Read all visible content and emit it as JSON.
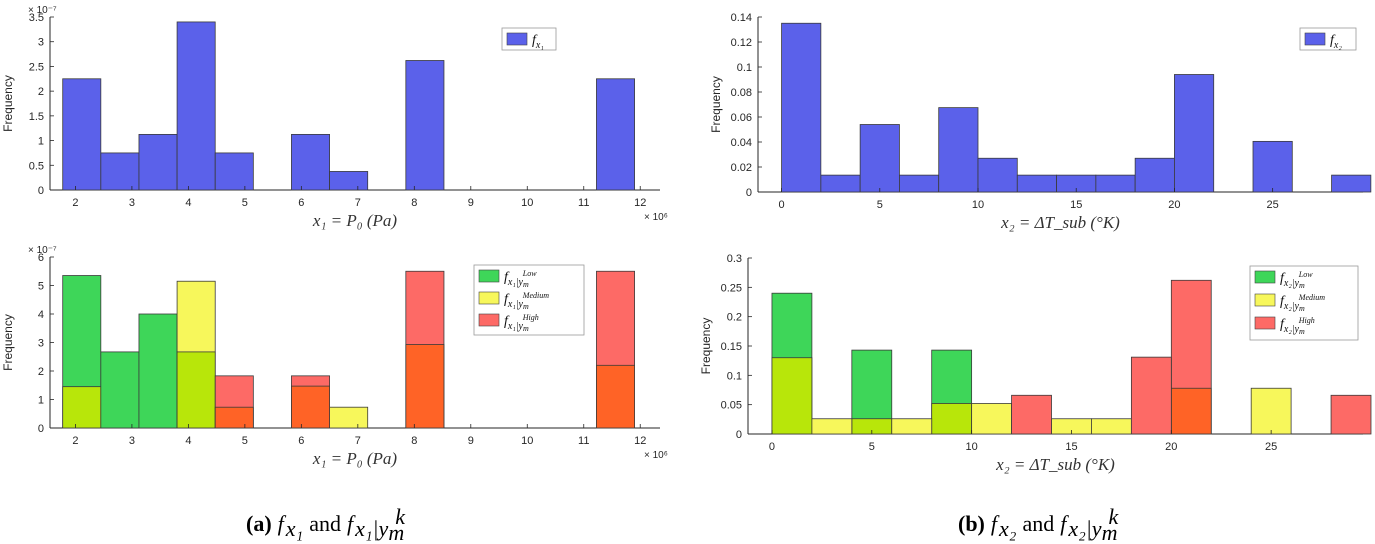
{
  "colors": {
    "blue": "#5b61ea",
    "green": "#3ed659",
    "yellow": "#f7f75b",
    "red": "#fd6a66",
    "green_yellow": "#b8e60a",
    "yellow_red": "#ff6326"
  },
  "captions": {
    "a": {
      "label": "(a)",
      "f1": "f",
      "f1_sub": "x₁",
      "and": "and",
      "f2": "f",
      "f2_sub": "x₁|y",
      "f2_subsub": "m",
      "f2_sup": "k"
    },
    "b": {
      "label": "(b)",
      "f1": "f",
      "f1_sub": "x₂",
      "and": "and",
      "f2": "f",
      "f2_sub": "x₂|y",
      "f2_subsub": "m",
      "f2_sup": "k"
    }
  },
  "chart_data": [
    {
      "id": "top-left",
      "type": "bar",
      "ylabel": "Frequency",
      "xlabel": "x₁ = P₀ (Pa)",
      "y_exponent": "× 10⁻⁷",
      "x_exponent": "× 10⁶",
      "xlim": [
        1.55,
        12.35
      ],
      "ylim": [
        0,
        3.5
      ],
      "xticks": [
        2,
        3,
        4,
        5,
        6,
        7,
        8,
        9,
        10,
        11,
        12
      ],
      "xtick_labels": [
        "2",
        "3",
        "4",
        "5",
        "6",
        "7",
        "8",
        "9",
        "10",
        "11",
        "12"
      ],
      "yticks": [
        0,
        0.5,
        1,
        1.5,
        2,
        2.5,
        3,
        3.5
      ],
      "ytick_labels": [
        "0",
        "0.5",
        "1",
        "1.5",
        "2",
        "2.5",
        "3",
        "3.5"
      ],
      "legend": {
        "position": "top-right",
        "entries": [
          {
            "label_base": "f",
            "label_sub": "x₁",
            "color": "blue"
          }
        ]
      },
      "bin_width": 0.675,
      "series": [
        {
          "color": "blue",
          "bins": [
            {
              "x0": 1.775,
              "value": 2.25
            },
            {
              "x0": 2.45,
              "value": 0.75
            },
            {
              "x0": 3.125,
              "value": 1.125
            },
            {
              "x0": 3.8,
              "value": 3.4
            },
            {
              "x0": 4.475,
              "value": 0.75
            },
            {
              "x0": 5.825,
              "value": 1.125
            },
            {
              "x0": 6.5,
              "value": 0.375
            },
            {
              "x0": 7.85,
              "value": 2.62
            },
            {
              "x0": 11.225,
              "value": 2.25
            }
          ]
        }
      ]
    },
    {
      "id": "top-right",
      "type": "bar",
      "ylabel": "Frequency",
      "xlabel": "x₂ = ΔT_sub (°K)",
      "xlim": [
        -1.2,
        29.6
      ],
      "ylim": [
        0,
        0.14
      ],
      "xticks": [
        0,
        5,
        10,
        15,
        20,
        25
      ],
      "xtick_labels": [
        "0",
        "5",
        "10",
        "15",
        "20",
        "25"
      ],
      "yticks": [
        0,
        0.02,
        0.04,
        0.06,
        0.08,
        0.1,
        0.12,
        0.14
      ],
      "ytick_labels": [
        "0",
        "0.02",
        "0.04",
        "0.06",
        "0.08",
        "0.1",
        "0.12",
        "0.14"
      ],
      "legend": {
        "position": "top-right",
        "entries": [
          {
            "label_base": "f",
            "label_sub": "x₂",
            "color": "blue"
          }
        ]
      },
      "bin_width": 2.0,
      "series": [
        {
          "color": "blue",
          "bins": [
            {
              "x0": 0,
              "value": 0.135
            },
            {
              "x0": 2,
              "value": 0.0135
            },
            {
              "x0": 4,
              "value": 0.054
            },
            {
              "x0": 6,
              "value": 0.0135
            },
            {
              "x0": 8,
              "value": 0.0675
            },
            {
              "x0": 10,
              "value": 0.027
            },
            {
              "x0": 12,
              "value": 0.0135
            },
            {
              "x0": 14,
              "value": 0.0135
            },
            {
              "x0": 16,
              "value": 0.0135
            },
            {
              "x0": 18,
              "value": 0.027
            },
            {
              "x0": 20,
              "value": 0.094
            },
            {
              "x0": 24,
              "value": 0.0405
            },
            {
              "x0": 28,
              "value": 0.0135
            }
          ]
        }
      ]
    },
    {
      "id": "bottom-left",
      "type": "bar",
      "ylabel": "Frequency",
      "xlabel": "x₁ = P₀ (Pa)",
      "y_exponent": "× 10⁻⁷",
      "x_exponent": "× 10⁶",
      "xlim": [
        1.55,
        12.35
      ],
      "ylim": [
        0,
        6
      ],
      "xticks": [
        2,
        3,
        4,
        5,
        6,
        7,
        8,
        9,
        10,
        11,
        12
      ],
      "xtick_labels": [
        "2",
        "3",
        "4",
        "5",
        "6",
        "7",
        "8",
        "9",
        "10",
        "11",
        "12"
      ],
      "yticks": [
        0,
        1,
        2,
        3,
        4,
        5,
        6
      ],
      "ytick_labels": [
        "0",
        "1",
        "2",
        "3",
        "4",
        "5",
        "6"
      ],
      "legend": {
        "position": "top-right",
        "entries": [
          {
            "label_base": "f",
            "label_sub": "x₁|y",
            "label_subsub": "m",
            "label_sup": "Low",
            "color": "green"
          },
          {
            "label_base": "f",
            "label_sub": "x₁|y",
            "label_subsub": "m",
            "label_sup": "Medium",
            "color": "yellow"
          },
          {
            "label_base": "f",
            "label_sub": "x₁|y",
            "label_subsub": "m",
            "label_sup": "High",
            "color": "red"
          }
        ]
      },
      "bin_width": 0.675,
      "overlap_colors": {
        "green+yellow": "green_yellow",
        "yellow+red": "yellow_red",
        "green+red": "yellow_red"
      },
      "series": [
        {
          "name": "Low",
          "color": "green",
          "bins": [
            {
              "x0": 1.775,
              "value": 5.35
            },
            {
              "x0": 2.45,
              "value": 2.67
            },
            {
              "x0": 3.125,
              "value": 4.0
            },
            {
              "x0": 3.8,
              "value": 2.67
            }
          ]
        },
        {
          "name": "Medium",
          "color": "yellow",
          "bins": [
            {
              "x0": 1.775,
              "value": 1.45
            },
            {
              "x0": 3.8,
              "value": 5.15
            },
            {
              "x0": 6.5,
              "value": 0.73
            }
          ]
        },
        {
          "name": "High",
          "color": "red",
          "bins": [
            {
              "x0": 4.475,
              "value": 1.83
            },
            {
              "x0": 5.825,
              "value": 1.83
            },
            {
              "x0": 7.85,
              "value": 5.5
            },
            {
              "x0": 11.225,
              "value": 5.5
            }
          ]
        }
      ],
      "inner_overlap_bins": [
        {
          "x0": 4.475,
          "value": 0.73
        },
        {
          "x0": 5.825,
          "value": 1.47
        },
        {
          "x0": 7.85,
          "value": 2.93
        },
        {
          "x0": 11.225,
          "value": 2.2
        }
      ]
    },
    {
      "id": "bottom-right",
      "type": "bar",
      "ylabel": "Frequency",
      "xlabel": "x₂ = ΔT_sub (°K)",
      "xlim": [
        -1.2,
        29.6
      ],
      "ylim": [
        0,
        0.3
      ],
      "xticks": [
        0,
        5,
        10,
        15,
        20,
        25
      ],
      "xtick_labels": [
        "0",
        "5",
        "10",
        "15",
        "20",
        "25"
      ],
      "yticks": [
        0,
        0.05,
        0.1,
        0.15,
        0.2,
        0.25,
        0.3
      ],
      "ytick_labels": [
        "0",
        "0.05",
        "0.1",
        "0.15",
        "0.2",
        "0.25",
        "0.3"
      ],
      "legend": {
        "position": "top-right",
        "entries": [
          {
            "label_base": "f",
            "label_sub": "x₂|y",
            "label_subsub": "m",
            "label_sup": "Low",
            "color": "green"
          },
          {
            "label_base": "f",
            "label_sub": "x₂|y",
            "label_subsub": "m",
            "label_sup": "Medium",
            "color": "yellow"
          },
          {
            "label_base": "f",
            "label_sub": "x₂|y",
            "label_subsub": "m",
            "label_sup": "High",
            "color": "red"
          }
        ]
      },
      "bin_width": 2.0,
      "series": [
        {
          "name": "Low",
          "color": "green",
          "bins": [
            {
              "x0": 0,
              "value": 0.24
            },
            {
              "x0": 4,
              "value": 0.143
            },
            {
              "x0": 8,
              "value": 0.143
            }
          ]
        },
        {
          "name": "Medium",
          "color": "yellow",
          "bins": [
            {
              "x0": 0,
              "value": 0.13
            },
            {
              "x0": 2,
              "value": 0.026
            },
            {
              "x0": 4,
              "value": 0.026
            },
            {
              "x0": 6,
              "value": 0.026
            },
            {
              "x0": 8,
              "value": 0.052
            },
            {
              "x0": 10,
              "value": 0.052
            },
            {
              "x0": 14,
              "value": 0.026
            },
            {
              "x0": 16,
              "value": 0.026
            },
            {
              "x0": 20,
              "value": 0.078
            },
            {
              "x0": 24,
              "value": 0.078
            }
          ]
        },
        {
          "name": "High",
          "color": "red",
          "bins": [
            {
              "x0": 12,
              "value": 0.066
            },
            {
              "x0": 18,
              "value": 0.131
            },
            {
              "x0": 20,
              "value": 0.262
            },
            {
              "x0": 28,
              "value": 0.066
            }
          ]
        }
      ]
    }
  ]
}
